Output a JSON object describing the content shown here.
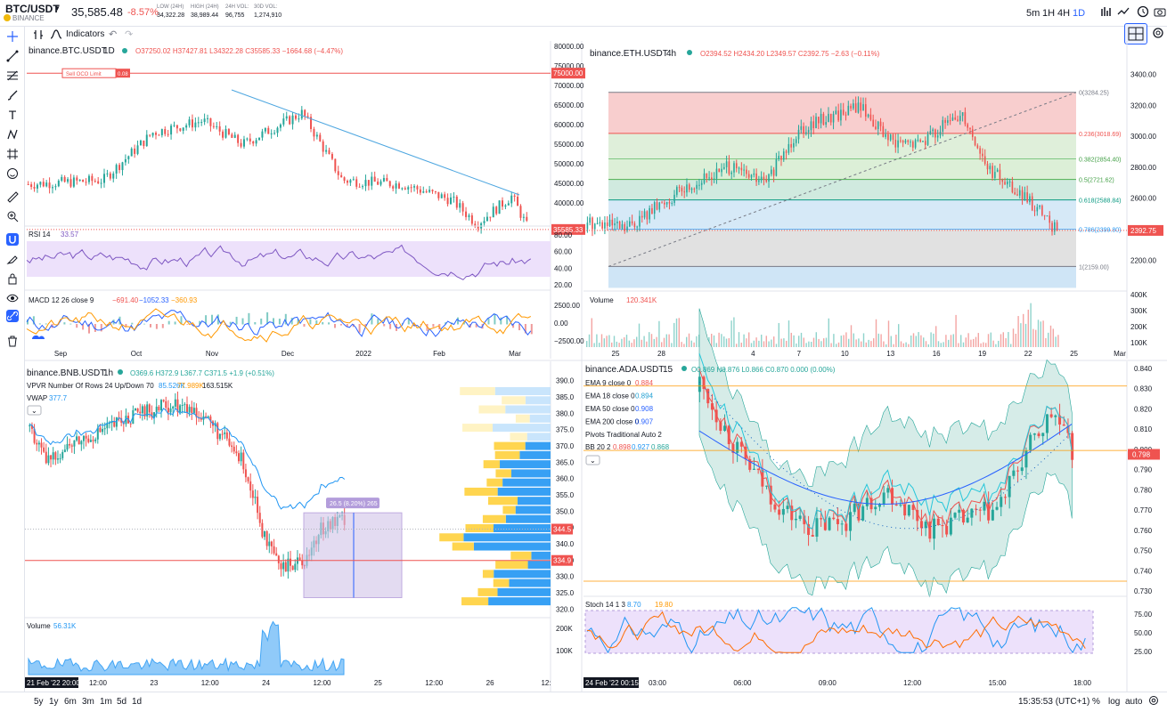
{
  "header": {
    "symbol": "BTC/USDT",
    "exchange": "BINANCE",
    "price": "35,585.48",
    "change": "-8.57%",
    "stats": [
      {
        "label": "LOW (24H)",
        "value": "34,322.28"
      },
      {
        "label": "HIGH (24H)",
        "value": "38,989.44"
      },
      {
        "label": "24H VOL:",
        "value": "96,755"
      },
      {
        "label": "30D VOL:",
        "value": "1,274,910"
      }
    ],
    "intervals": [
      "5m",
      "1H",
      "4H",
      "1D"
    ],
    "active_interval": "1D"
  },
  "toolbar": {
    "indicators": "Indicators"
  },
  "bottom": {
    "ranges": [
      "5y",
      "1y",
      "6m",
      "3m",
      "1m",
      "5d",
      "1d"
    ],
    "time": "15:35:53 (UTC+1)",
    "percent": "%",
    "log": "log",
    "auto": "auto"
  },
  "colors": {
    "up": "#26a69a",
    "down": "#ef5350",
    "accent": "#2962ff"
  },
  "panes": {
    "btc": {
      "title": "binance.BTC.USDT",
      "interval": "1D",
      "ohlc": "O37250.02  H37427.81  L34322.28  C35585.33  −1664.68 (−4.47%)",
      "order_label": "Sell OCO Limit",
      "order_qty": "0.08",
      "price_tag": "35585.33",
      "order_tag": "75000.00",
      "yaxis": [
        "80000.00",
        "75000.00",
        "70000.00",
        "65000.00",
        "60000.00",
        "55000.00",
        "50000.00",
        "45000.00",
        "40000.00"
      ],
      "rsi_label": "RSI 14",
      "rsi_value": "33.57",
      "rsi_axis": [
        "80.00",
        "60.00",
        "40.00",
        "20.00"
      ],
      "macd_label": "MACD 12 26 close 9",
      "macd_values": [
        "−691.40",
        "−1052.33",
        "−360.93"
      ],
      "macd_axis": [
        "2500.00",
        "0.00",
        "−2500.00"
      ],
      "xaxis": [
        "Sep",
        "Oct",
        "Nov",
        "Dec",
        "2022",
        "Feb",
        "Mar"
      ]
    },
    "eth": {
      "title": "binance.ETH.USDT",
      "interval": "4h",
      "ohlc": "O2394.52  H2434.20  L2349.57  C2392.75  −2.63 (−0.11%)",
      "price_tag": "2392.75",
      "fib": [
        "0(3284.25)",
        "0.236(3018.69)",
        "0.382(2854.40)",
        "0.5(2721.62)",
        "0.618(2588.84)",
        "0.786(2399.80)",
        "1(2159.00)"
      ],
      "yaxis": [
        "3400.00",
        "3200.00",
        "3000.00",
        "2800.00",
        "2600.00",
        "2400.00",
        "2200.00"
      ],
      "volume_label": "Volume",
      "volume_value": "120.341K",
      "vol_axis": [
        "400K",
        "300K",
        "200K",
        "100K"
      ],
      "xaxis": [
        "25",
        "28",
        "Feb",
        "4",
        "7",
        "10",
        "13",
        "16",
        "19",
        "22",
        "25",
        "Mar"
      ]
    },
    "bnb": {
      "title": "binance.BNB.USDT",
      "interval": "1h",
      "ohlc": "O369.6  H372.9  L367.7  C371.5  +1.9 (+0.51%)",
      "vpvr_label": "VPVR Number Of Rows 24 Up/Down 70",
      "vpvr_values": [
        "85.526K",
        "77.989K",
        "163.515K"
      ],
      "vwap_label": "VWAP",
      "vwap_value": "377.7",
      "measure_label": "26.5 (8.20%) 265",
      "price_tags": [
        "344.5",
        "334.9"
      ],
      "yaxis": [
        "390.0",
        "385.0",
        "380.0",
        "375.0",
        "370.0",
        "365.0",
        "360.0",
        "355.0",
        "350.0",
        "345.0",
        "340.0",
        "335.0",
        "330.0",
        "325.0",
        "320.0"
      ],
      "volume_label": "Volume",
      "volume_value": "56.31K",
      "vol_axis": [
        "200K",
        "100K"
      ],
      "xaxis": [
        "12:00",
        "23",
        "12:00",
        "24",
        "12:00",
        "25",
        "12:00",
        "26",
        "12:"
      ],
      "cursor_time": "21 Feb '22  20:00"
    },
    "ada": {
      "title": "binance.ADA.USDT",
      "interval": "15",
      "ohlc": "O0.869  H0.876  L0.866  C0.870  0.000 (0.00%)",
      "ema": [
        {
          "label": "EMA 9 close 0",
          "value": "0.884",
          "color": "#ef5350"
        },
        {
          "label": "EMA 18 close 0",
          "value": "0.894",
          "color": "#26a2d4"
        },
        {
          "label": "EMA 50 close 0",
          "value": "0.908",
          "color": "#2962ff"
        },
        {
          "label": "EMA 200 close 0",
          "value": "0.907",
          "color": "#2962ff"
        }
      ],
      "pivots_label": "Pivots Traditional Auto 2",
      "bb_label": "BB 20 2",
      "bb_values": [
        "0.898",
        "0.927",
        "0.868"
      ],
      "price_tag": "0.798",
      "yaxis": [
        "0.840",
        "0.830",
        "0.820",
        "0.810",
        "0.800",
        "0.790",
        "0.780",
        "0.770",
        "0.760",
        "0.750",
        "0.740",
        "0.730"
      ],
      "stoch_label": "Stoch 14 1 3",
      "stoch_values": [
        "8.70",
        "19.80"
      ],
      "stoch_axis": [
        "75.00",
        "50.00",
        "25.00"
      ],
      "xaxis": [
        "03:00",
        "06:00",
        "09:00",
        "12:00",
        "15:00",
        "18:00"
      ],
      "cursor_time": "24 Feb '22  00:15"
    }
  }
}
